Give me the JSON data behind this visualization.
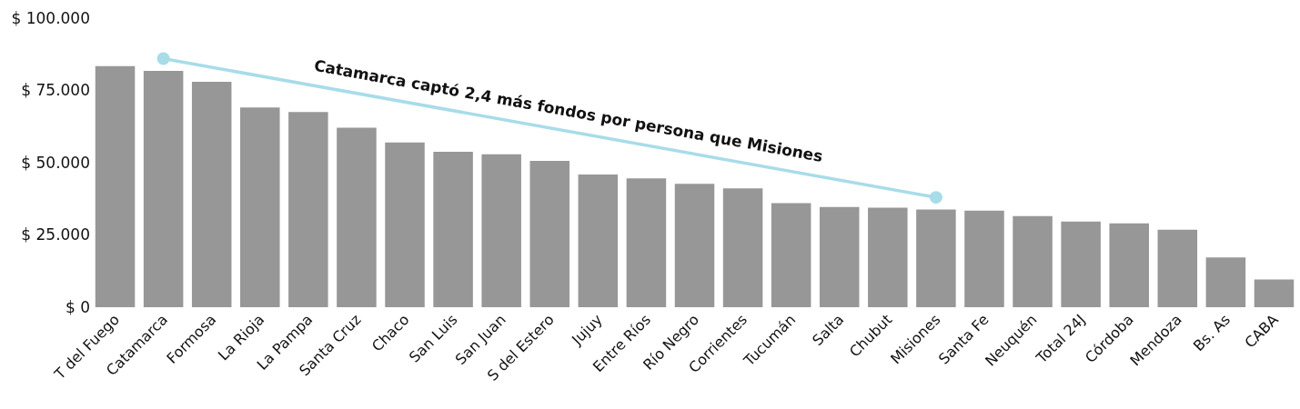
{
  "chart_data": {
    "type": "bar",
    "categories": [
      "T del Fuego",
      "Catamarca",
      "Formosa",
      "La Rioja",
      "La Pampa",
      "Santa Cruz",
      "Chaco",
      "San Luis",
      "San Juan",
      "S del Estero",
      "Jujuy",
      "Entre Ríos",
      "Río Negro",
      "Corrientes",
      "Tucumán",
      "Salta",
      "Chubut",
      "Misiones",
      "Santa Fe",
      "Neuquén",
      "Total 24J",
      "Córdoba",
      "Mendoza",
      "Bs. As",
      "CABA"
    ],
    "series": [
      {
        "color": "#979797",
        "values": [
          83400,
          81800,
          78000,
          69100,
          67500,
          62100,
          57000,
          53800,
          52900,
          50600,
          45900,
          44600,
          42700,
          41100,
          36000,
          34700,
          34400,
          33800,
          33400,
          31500,
          29600,
          29000,
          26800,
          17200,
          9600
        ]
      },
      {
        "type": "line",
        "x": [
          "Catamarca",
          "Misiones"
        ],
        "color": "#a8dce9",
        "values": [
          86000,
          38000
        ]
      }
    ],
    "marker": "circle",
    "annotations": [
      "Catamarca captó 2,4 más fondos por persona que Misiones"
    ],
    "ylim": [
      0,
      100000
    ],
    "yticks": [
      {
        "value": 0,
        "label": "$ 0"
      },
      {
        "value": 25000,
        "label": "$ 25.000"
      },
      {
        "value": 50000,
        "label": "$ 50.000"
      },
      {
        "value": 75000,
        "label": "$ 75.000"
      },
      {
        "value": 100000,
        "label": "$ 100.000"
      }
    ],
    "grid": false
  }
}
